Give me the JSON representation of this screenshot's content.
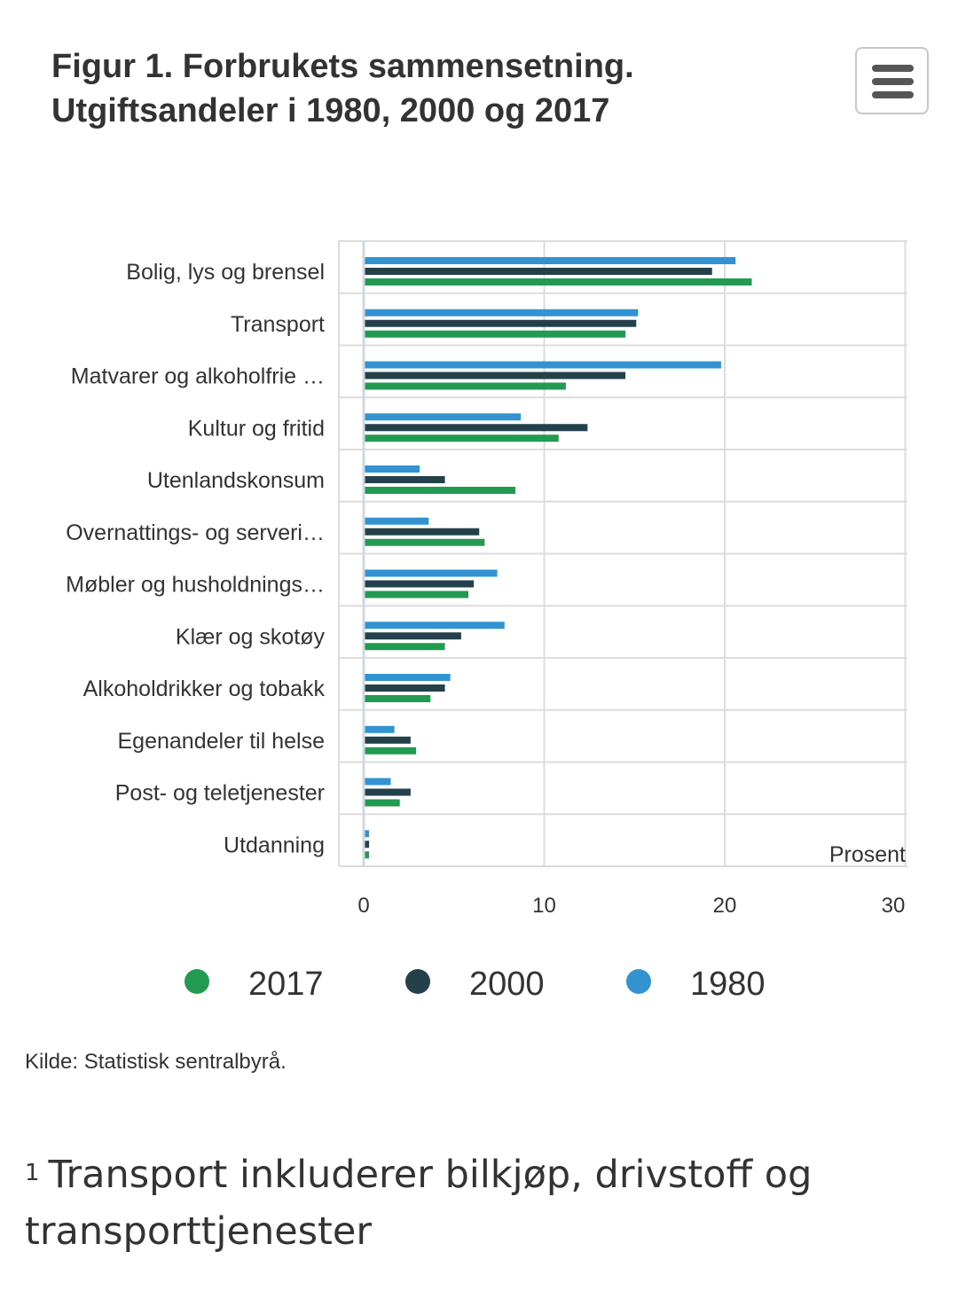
{
  "header": {
    "title_line1": "Figur 1. Forbrukets sammensetning.",
    "title_line2": "Utgiftsandeler i 1980, 2000 og 2017",
    "menu_icon": "hamburger-menu-icon"
  },
  "colors": {
    "2017": "#229a51",
    "2000": "#24414b",
    "1980": "#3393d0"
  },
  "chart_data": {
    "type": "bar",
    "orientation": "horizontal",
    "categories": [
      "Bolig, lys og brensel",
      "Transport",
      "Matvarer og alkoholfrie …",
      "Kultur og fritid",
      "Utenlandskonsum",
      "Overnattings- og serveri…",
      "Møbler og husholdnings…",
      "Klær og skotøy",
      "Alkoholdrikker og tobakk",
      "Egenandeler til helse",
      "Post- og teletjenester",
      "Utdanning"
    ],
    "series": [
      {
        "name": "1980",
        "color": "#3393d0",
        "values": [
          20.6,
          15.2,
          19.8,
          8.7,
          3.1,
          3.6,
          7.4,
          7.8,
          4.8,
          1.7,
          1.5,
          0.3
        ]
      },
      {
        "name": "2000",
        "color": "#24414b",
        "values": [
          19.3,
          15.1,
          14.5,
          12.4,
          4.5,
          6.4,
          6.1,
          5.4,
          4.5,
          2.6,
          2.6,
          0.3
        ]
      },
      {
        "name": "2017",
        "color": "#229a51",
        "values": [
          21.5,
          14.5,
          11.2,
          10.8,
          8.4,
          6.7,
          5.8,
          4.5,
          3.7,
          2.9,
          2.0,
          0.3
        ]
      }
    ],
    "xlabel": "Prosent",
    "xlim": [
      0,
      30
    ],
    "xticks": [
      "0",
      "10",
      "20",
      "30"
    ],
    "grid": true,
    "legend": {
      "position": "bottom",
      "items": [
        "2017",
        "2000",
        "1980"
      ]
    }
  },
  "source": "Kilde: Statistisk sentralbyrå.",
  "footnote": {
    "marker": "1",
    "text": "Transport inkluderer bilkjøp, drivstoff og transporttjenester"
  }
}
